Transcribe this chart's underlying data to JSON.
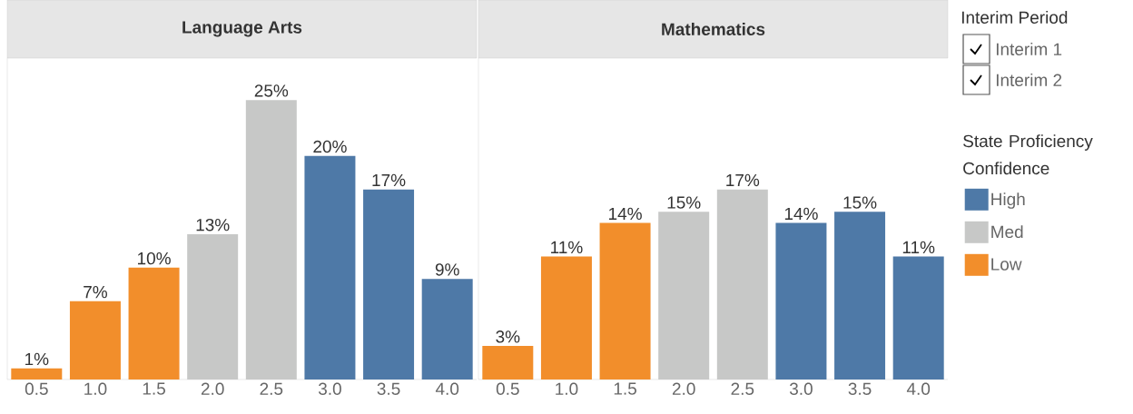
{
  "chart_data": [
    {
      "type": "bar",
      "title": "Language Arts",
      "categories": [
        "0.5",
        "1.0",
        "1.5",
        "2.0",
        "2.5",
        "3.0",
        "3.5",
        "4.0"
      ],
      "series": [
        {
          "color": "#f28e2b",
          "values": [
            1,
            7,
            10,
            null,
            null,
            null,
            null,
            null
          ],
          "value_labels": [
            "1%",
            "7%",
            "10%",
            null,
            null,
            null,
            null,
            null
          ]
        },
        {
          "color": "#c7c8c7",
          "values": [
            null,
            null,
            null,
            13,
            25,
            null,
            null,
            null
          ],
          "value_labels": [
            null,
            null,
            null,
            "13%",
            "25%",
            null,
            null,
            null
          ]
        },
        {
          "color": "#4e79a7",
          "values": [
            null,
            null,
            null,
            null,
            null,
            20,
            17,
            9
          ],
          "value_labels": [
            null,
            null,
            null,
            null,
            null,
            "20%",
            "17%",
            "9%"
          ]
        }
      ]
    },
    {
      "type": "bar",
      "title": "Mathematics",
      "categories": [
        "0.5",
        "1.0",
        "1.5",
        "2.0",
        "2.5",
        "3.0",
        "3.5",
        "4.0"
      ],
      "legend": "right",
      "legend_title": "State Proficiency Confidence",
      "series": [
        {
          "name": "High",
          "color": "#4e79a7",
          "values": [
            null,
            null,
            null,
            null,
            null,
            14,
            15,
            11
          ],
          "value_labels": [
            null,
            null,
            null,
            null,
            null,
            "14%",
            "15%",
            "11%"
          ]
        },
        {
          "name": "Med",
          "color": "#c7c8c7",
          "values": [
            null,
            null,
            null,
            15,
            17,
            null,
            null,
            null
          ],
          "value_labels": [
            null,
            null,
            null,
            "15%",
            "17%",
            null,
            null,
            null
          ]
        },
        {
          "name": "Low",
          "color": "#f28e2b",
          "values": [
            3,
            11,
            14,
            null,
            null,
            null,
            null,
            null
          ],
          "value_labels": [
            "3%",
            "11%",
            "14%",
            null,
            null,
            null,
            null,
            null
          ]
        }
      ]
    },
    {
      "type": "other",
      "title": "Interim Period",
      "annotations": [
        "Interim 1",
        "Interim 2"
      ]
    }
  ]
}
